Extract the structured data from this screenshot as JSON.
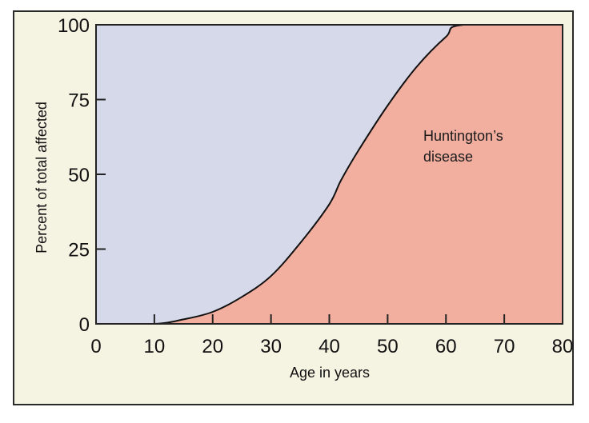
{
  "chart_data": {
    "type": "area",
    "title": "",
    "xlabel": "Age in years",
    "ylabel": "Percent of total affected",
    "xlim": [
      0,
      80
    ],
    "ylim": [
      0,
      100
    ],
    "xticks": [
      0,
      10,
      20,
      30,
      40,
      50,
      60,
      70,
      80
    ],
    "yticks": [
      0,
      25,
      50,
      75,
      100
    ],
    "grid": false,
    "legend": null,
    "series": [
      {
        "name": "Huntington's disease",
        "x": [
          0,
          10,
          15,
          20,
          25,
          30,
          35,
          40,
          42,
          45,
          50,
          55,
          60,
          63,
          80
        ],
        "values": [
          0,
          0,
          1.5,
          4,
          9,
          16,
          27,
          40,
          48,
          58,
          73,
          86,
          96,
          100,
          100
        ]
      }
    ],
    "annotations": [
      {
        "text": "Huntington’s",
        "line2": "disease",
        "x": 56,
        "y": 62
      }
    ],
    "colors": {
      "affected_fill": "#f2afa0",
      "unaffected_fill": "#d6d9ea",
      "background": "#f5f3e2",
      "line": "#111111"
    }
  },
  "labels": {
    "xlabel": "Age in years",
    "ylabel": "Percent of total affected",
    "annotation_line1": "Huntington’s",
    "annotation_line2": "disease",
    "xticks": [
      "0",
      "10",
      "20",
      "30",
      "40",
      "50",
      "60",
      "70",
      "80"
    ],
    "yticks": [
      "0",
      "25",
      "50",
      "75",
      "100"
    ]
  }
}
